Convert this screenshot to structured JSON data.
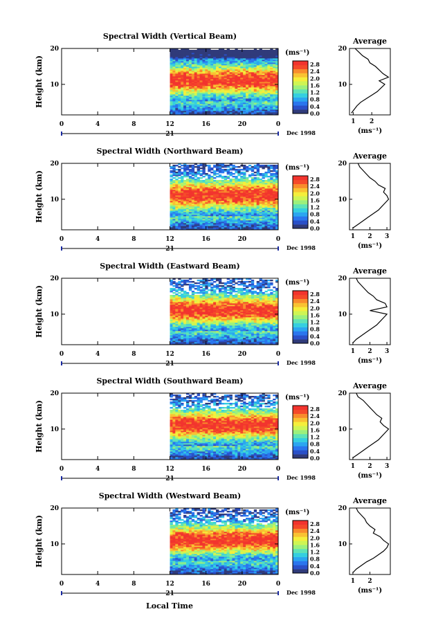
{
  "chart_data": {
    "type": "heatmap",
    "x_axis_label": "Local Time",
    "y_axis_label": "Height (km)",
    "x_ticks": [
      "0",
      "4",
      "8",
      "12",
      "16",
      "20",
      "0"
    ],
    "x_range": [
      0,
      24
    ],
    "y_ticks": [
      "20",
      "10"
    ],
    "y_range": [
      1.5,
      20
    ],
    "day_label": "21",
    "month_label": "Dec 1998",
    "colorbar": {
      "unit_label": "(ms⁻¹)",
      "ticks": [
        "2.8",
        "2.4",
        "2.0",
        "1.6",
        "1.2",
        "0.8",
        "0.4",
        "0.0"
      ],
      "range": [
        0.0,
        3.0
      ],
      "colors": [
        "#303b7a",
        "#2a50c8",
        "#2a76ee",
        "#2ba6f0",
        "#35cfe0",
        "#5fe3b6",
        "#9cf07c",
        "#cff553",
        "#f5ee3b",
        "#f9c232",
        "#f98c2c",
        "#f54a2a",
        "#f2342e"
      ]
    },
    "data_start_time": 12,
    "profile_title": "Average",
    "profile_unit": "(ms⁻¹)",
    "panels": [
      {
        "title": "Spectral Width (Vertical Beam)",
        "profile_ticks": [
          "1",
          "2"
        ],
        "profile_xrange": [
          0.8,
          3.0
        ],
        "profile": {
          "height": [
            2.0,
            3,
            4,
            5,
            6,
            7,
            8,
            9,
            10,
            11,
            12,
            13,
            14,
            15,
            16,
            17,
            18,
            19,
            20
          ],
          "width": [
            0.9,
            1.05,
            1.2,
            1.4,
            1.7,
            2.0,
            2.3,
            2.5,
            2.7,
            2.4,
            2.9,
            2.6,
            2.4,
            2.2,
            1.9,
            1.8,
            1.5,
            1.3,
            1.1
          ]
        }
      },
      {
        "title": "Spectral Width (Northward Beam)",
        "profile_ticks": [
          "1",
          "2",
          "3"
        ],
        "profile_xrange": [
          0.8,
          3.2
        ],
        "profile": {
          "height": [
            2.0,
            3,
            4,
            5,
            6,
            7,
            8,
            9,
            10,
            11,
            12,
            13,
            14,
            15,
            16,
            17,
            18,
            19,
            20
          ],
          "width": [
            1.0,
            1.3,
            1.6,
            1.9,
            2.2,
            2.5,
            2.7,
            2.9,
            3.1,
            3.0,
            2.8,
            2.9,
            2.5,
            2.3,
            2.0,
            1.8,
            1.6,
            1.4,
            1.3
          ]
        }
      },
      {
        "title": "Spectral Width (Eastward Beam)",
        "profile_ticks": [
          "1",
          "2",
          "3"
        ],
        "profile_xrange": [
          0.8,
          3.2
        ],
        "profile": {
          "height": [
            2.0,
            3,
            4,
            5,
            6,
            7,
            8,
            9,
            10,
            11,
            12,
            13,
            14,
            15,
            16,
            17,
            18,
            19,
            20
          ],
          "width": [
            1.0,
            1.2,
            1.5,
            1.8,
            2.1,
            2.4,
            2.6,
            2.8,
            3.0,
            2.0,
            3.0,
            2.9,
            2.4,
            2.2,
            1.9,
            1.7,
            1.5,
            1.3,
            1.2
          ]
        }
      },
      {
        "title": "Spectral Width (Southward Beam)",
        "profile_ticks": [
          "1",
          "2",
          "3"
        ],
        "profile_xrange": [
          0.8,
          3.2
        ],
        "profile": {
          "height": [
            2.0,
            3,
            4,
            5,
            6,
            7,
            8,
            9,
            10,
            11,
            12,
            13,
            14,
            15,
            16,
            17,
            18,
            19,
            20
          ],
          "width": [
            1.0,
            1.3,
            1.6,
            1.9,
            2.2,
            2.5,
            2.7,
            2.9,
            3.1,
            2.8,
            2.6,
            2.7,
            2.4,
            2.2,
            2.0,
            1.8,
            1.6,
            1.3,
            1.2
          ]
        }
      },
      {
        "title": "Spectral Width (Westward Beam)",
        "profile_ticks": [
          "1",
          "2"
        ],
        "profile_xrange": [
          0.8,
          3.2
        ],
        "profile": {
          "height": [
            2.0,
            3,
            4,
            5,
            6,
            7,
            8,
            9,
            10,
            11,
            12,
            13,
            14,
            15,
            16,
            17,
            18,
            19,
            20
          ],
          "width": [
            1.0,
            1.2,
            1.5,
            1.8,
            2.2,
            2.5,
            2.8,
            3.0,
            3.1,
            2.8,
            2.6,
            2.2,
            2.3,
            2.0,
            1.8,
            1.7,
            1.5,
            1.3,
            1.2
          ]
        }
      }
    ]
  }
}
